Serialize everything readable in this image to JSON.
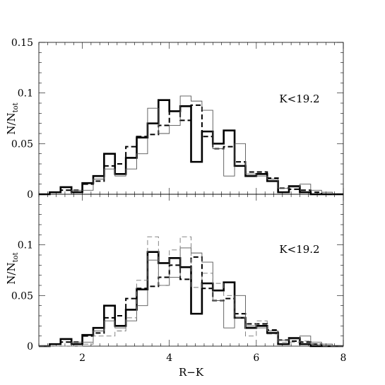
{
  "chart_data": [
    {
      "type": "step",
      "annotation": "K<19.2",
      "ylabel": "N/N",
      "ylabel_sub": "tot",
      "xlim": [
        1,
        8
      ],
      "ylim": [
        0,
        0.15
      ],
      "yticks": [
        "0",
        "0.05",
        "0.1",
        "0.15"
      ],
      "bin_edges": [
        1.25,
        1.5,
        1.75,
        2.0,
        2.25,
        2.5,
        2.75,
        3.0,
        3.25,
        3.5,
        3.75,
        4.0,
        4.25,
        4.5,
        4.75,
        5.0,
        5.25,
        5.5,
        5.75,
        6.0,
        6.25,
        6.5,
        6.75,
        7.0,
        7.25,
        7.5,
        7.75
      ],
      "series": [
        {
          "style": "thick-solid",
          "values": [
            0.002,
            0.007,
            0.002,
            0.011,
            0.018,
            0.04,
            0.02,
            0.036,
            0.056,
            0.07,
            0.093,
            0.082,
            0.087,
            0.032,
            0.062,
            0.05,
            0.063,
            0.028,
            0.018,
            0.02,
            0.013,
            0.002,
            0.008,
            0.002,
            0.0,
            0.0
          ]
        },
        {
          "style": "dashed",
          "values": [
            0.002,
            0.004,
            0.004,
            0.01,
            0.013,
            0.028,
            0.03,
            0.047,
            0.057,
            0.059,
            0.068,
            0.082,
            0.073,
            0.088,
            0.057,
            0.045,
            0.047,
            0.032,
            0.022,
            0.022,
            0.016,
            0.006,
            0.005,
            0.004,
            0.002,
            0.0
          ]
        },
        {
          "style": "thin-solid",
          "values": [
            0.0,
            0.0,
            0.004,
            0.004,
            0.015,
            0.025,
            0.018,
            0.025,
            0.04,
            0.085,
            0.06,
            0.068,
            0.097,
            0.092,
            0.083,
            0.045,
            0.018,
            0.05,
            0.02,
            0.018,
            0.015,
            0.006,
            0.007,
            0.01,
            0.004,
            0.002
          ]
        }
      ]
    },
    {
      "type": "step",
      "annotation": "K<19.2",
      "xlabel": "R−K",
      "ylabel": "N/N",
      "ylabel_sub": "tot",
      "xlim": [
        1,
        8
      ],
      "ylim": [
        0,
        0.15
      ],
      "xticks": [
        "2",
        "4",
        "6",
        "8"
      ],
      "yticks": [
        "0",
        "0.05",
        "0.1"
      ],
      "bin_edges": [
        1.25,
        1.5,
        1.75,
        2.0,
        2.25,
        2.5,
        2.75,
        3.0,
        3.25,
        3.5,
        3.75,
        4.0,
        4.25,
        4.5,
        4.75,
        5.0,
        5.25,
        5.5,
        5.75,
        6.0,
        6.25,
        6.5,
        6.75,
        7.0,
        7.25,
        7.5,
        7.75
      ],
      "series": [
        {
          "style": "thick-solid",
          "values": [
            0.002,
            0.007,
            0.002,
            0.011,
            0.018,
            0.04,
            0.02,
            0.036,
            0.056,
            0.093,
            0.082,
            0.087,
            0.078,
            0.032,
            0.062,
            0.055,
            0.063,
            0.028,
            0.018,
            0.02,
            0.013,
            0.002,
            0.008,
            0.002,
            0.0,
            0.0
          ]
        },
        {
          "style": "dashed",
          "values": [
            0.002,
            0.004,
            0.004,
            0.01,
            0.013,
            0.028,
            0.03,
            0.047,
            0.057,
            0.059,
            0.068,
            0.08,
            0.066,
            0.088,
            0.057,
            0.045,
            0.047,
            0.032,
            0.022,
            0.022,
            0.016,
            0.006,
            0.005,
            0.004,
            0.002,
            0.0
          ]
        },
        {
          "style": "thin-solid",
          "values": [
            0.0,
            0.0,
            0.004,
            0.004,
            0.015,
            0.025,
            0.018,
            0.025,
            0.04,
            0.085,
            0.06,
            0.068,
            0.097,
            0.092,
            0.083,
            0.045,
            0.018,
            0.05,
            0.02,
            0.018,
            0.015,
            0.006,
            0.007,
            0.01,
            0.004,
            0.002
          ]
        },
        {
          "style": "thin-dashed",
          "values": [
            0.0,
            0.0,
            0.0,
            0.002,
            0.01,
            0.01,
            0.015,
            0.028,
            0.065,
            0.108,
            0.06,
            0.095,
            0.108,
            0.058,
            0.072,
            0.062,
            0.05,
            0.028,
            0.01,
            0.025,
            0.012,
            0.004,
            0.004,
            0.005,
            0.002,
            0.0
          ]
        }
      ]
    }
  ]
}
